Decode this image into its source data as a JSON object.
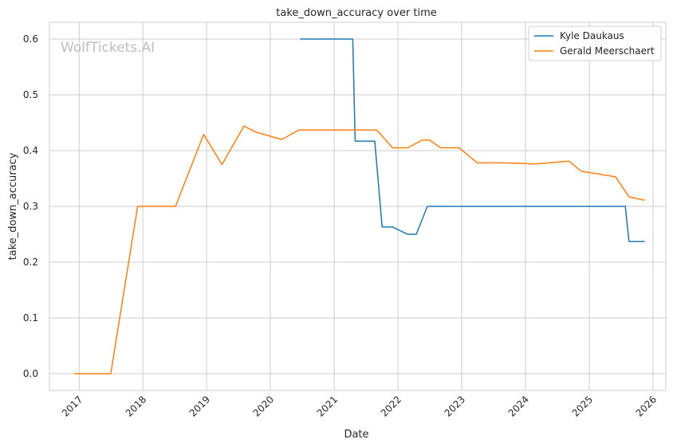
{
  "chart_data": {
    "type": "line",
    "title": "take_down_accuracy over time",
    "xlabel": "Date",
    "ylabel": "take_down_accuracy",
    "watermark": "WolfTickets.AI",
    "x_ticks": [
      "2017",
      "2018",
      "2019",
      "2020",
      "2021",
      "2022",
      "2023",
      "2024",
      "2025",
      "2026"
    ],
    "y_ticks": [
      "0.0",
      "0.1",
      "0.2",
      "0.3",
      "0.4",
      "0.5",
      "0.6"
    ],
    "xlim": [
      "2016-07-15",
      "2026-03-15"
    ],
    "ylim": [
      -0.03,
      0.63
    ],
    "grid": true,
    "legend_position": "top-right",
    "series": [
      {
        "name": "Kyle Daukaus",
        "color": "#1f77b4",
        "points": [
          [
            "2020-06-20",
            0.6
          ],
          [
            "2021-04-17",
            0.6
          ],
          [
            "2021-05-01",
            0.417
          ],
          [
            "2021-08-21",
            0.417
          ],
          [
            "2021-10-02",
            0.263
          ],
          [
            "2021-12-01",
            0.263
          ],
          [
            "2022-02-26",
            0.25
          ],
          [
            "2022-04-16",
            0.25
          ],
          [
            "2022-06-18",
            0.3
          ],
          [
            "2025-07-26",
            0.3
          ],
          [
            "2025-08-16",
            0.237
          ],
          [
            "2025-11-15",
            0.237
          ]
        ]
      },
      {
        "name": "Gerald Meerschaert",
        "color": "#ff7f0e",
        "points": [
          [
            "2016-12-03",
            0.0
          ],
          [
            "2017-07-01",
            0.0
          ],
          [
            "2017-12-02",
            0.3
          ],
          [
            "2018-07-07",
            0.3
          ],
          [
            "2018-12-15",
            0.429
          ],
          [
            "2019-03-30",
            0.375
          ],
          [
            "2019-08-03",
            0.444
          ],
          [
            "2019-10-12",
            0.433
          ],
          [
            "2020-03-07",
            0.42
          ],
          [
            "2020-06-13",
            0.437
          ],
          [
            "2021-09-01",
            0.437
          ],
          [
            "2021-12-01",
            0.405
          ],
          [
            "2022-02-26",
            0.405
          ],
          [
            "2022-05-21",
            0.419
          ],
          [
            "2022-07-01",
            0.419
          ],
          [
            "2022-09-03",
            0.405
          ],
          [
            "2022-12-17",
            0.405
          ],
          [
            "2023-04-01",
            0.378
          ],
          [
            "2023-08-26",
            0.378
          ],
          [
            "2024-02-24",
            0.376
          ],
          [
            "2024-09-07",
            0.381
          ],
          [
            "2024-11-16",
            0.363
          ],
          [
            "2025-05-31",
            0.353
          ],
          [
            "2025-08-16",
            0.317
          ],
          [
            "2025-11-15",
            0.311
          ]
        ]
      }
    ]
  }
}
